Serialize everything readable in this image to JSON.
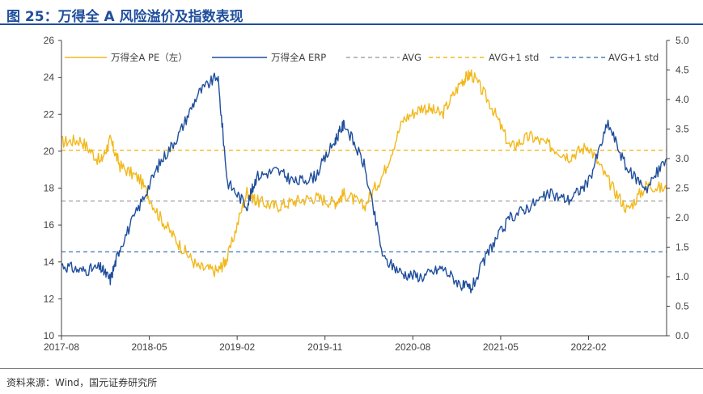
{
  "title": "图 25：万得全 A 风险溢价及指数表现",
  "source": "资料来源：Wind，国元证券研究所",
  "chart_data": {
    "type": "line",
    "title": "图 25：万得全 A 风险溢价及指数表现",
    "x_tick_labels": [
      "2017-08",
      "2018-05",
      "2019-02",
      "2019-11",
      "2020-08",
      "2021-05",
      "2022-02"
    ],
    "x_range": [
      "2017-08",
      "2022-10"
    ],
    "y_left": {
      "range": [
        10,
        26
      ],
      "ticks": [
        10,
        12,
        14,
        16,
        18,
        20,
        22,
        24,
        26
      ]
    },
    "y_right": {
      "range": [
        0.0,
        5.0
      ],
      "ticks": [
        "0.0",
        "0.5",
        "1.0",
        "1.5",
        "2.0",
        "2.5",
        "3.0",
        "3.5",
        "4.0",
        "4.5",
        "5.0"
      ]
    },
    "grid": false,
    "legend_position": "top",
    "colors": {
      "pe": "#f2b81c",
      "erp": "#1f4e9c",
      "avg": "#a6a6a6",
      "pe_std": "#f2b81c",
      "erp_std": "#4f81bd"
    },
    "series": [
      {
        "name": "万得全A PE（左）",
        "axis": "left",
        "x": [
          "2017-08",
          "2017-10",
          "2017-12",
          "2018-01",
          "2018-02",
          "2018-04",
          "2018-06",
          "2018-08",
          "2018-10",
          "2018-12",
          "2019-01",
          "2019-03",
          "2019-04",
          "2019-06",
          "2019-08",
          "2019-10",
          "2019-12",
          "2020-01",
          "2020-03",
          "2020-05",
          "2020-07",
          "2020-09",
          "2020-11",
          "2021-01",
          "2021-02",
          "2021-04",
          "2021-06",
          "2021-08",
          "2021-10",
          "2021-12",
          "2022-02",
          "2022-04",
          "2022-06",
          "2022-08",
          "2022-10"
        ],
        "values": [
          20.5,
          20.6,
          19.4,
          20.6,
          19.2,
          18.5,
          16.5,
          15.0,
          13.7,
          13.5,
          14.2,
          17.8,
          17.3,
          17.0,
          17.3,
          17.5,
          17.2,
          17.7,
          17.0,
          18.8,
          21.7,
          22.4,
          22.0,
          23.8,
          24.2,
          22.5,
          20.2,
          20.8,
          20.3,
          19.7,
          20.3,
          18.4,
          16.8,
          18.2,
          17.9
        ]
      },
      {
        "name": "万得全A ERP",
        "axis": "right",
        "x": [
          "2017-08",
          "2017-10",
          "2017-12",
          "2018-01",
          "2018-02",
          "2018-04",
          "2018-06",
          "2018-08",
          "2018-10",
          "2018-12",
          "2019-01",
          "2019-03",
          "2019-04",
          "2019-06",
          "2019-08",
          "2019-10",
          "2019-12",
          "2020-01",
          "2020-03",
          "2020-05",
          "2020-07",
          "2020-09",
          "2020-11",
          "2021-01",
          "2021-02",
          "2021-04",
          "2021-06",
          "2021-08",
          "2021-10",
          "2021-12",
          "2022-02",
          "2022-04",
          "2022-06",
          "2022-08",
          "2022-10"
        ],
        "values": [
          1.2,
          1.1,
          1.15,
          0.95,
          1.5,
          2.2,
          2.9,
          3.4,
          4.1,
          4.4,
          2.6,
          2.2,
          2.7,
          2.8,
          2.6,
          2.7,
          3.3,
          3.6,
          2.9,
          1.3,
          1.05,
          1.0,
          1.15,
          0.85,
          0.8,
          1.5,
          2.0,
          2.2,
          2.4,
          2.3,
          2.6,
          3.6,
          2.8,
          2.5,
          3.0
        ]
      }
    ],
    "reference_lines": [
      {
        "name": "AVG",
        "axis": "left",
        "value": 17.3
      },
      {
        "name": "AVG+1 std",
        "axis": "left",
        "value": 20.05
      },
      {
        "name": "AVG+1 std",
        "axis": "left",
        "value": 14.55
      }
    ],
    "legend": [
      "万得全A PE（左）",
      "万得全A ERP",
      "AVG",
      "AVG+1 std",
      "AVG+1 std"
    ]
  }
}
